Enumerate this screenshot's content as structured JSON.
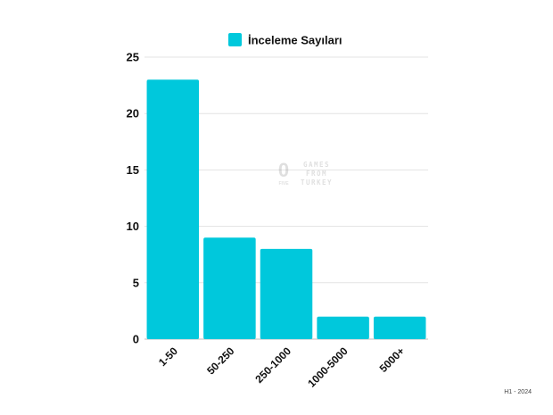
{
  "chart_data": {
    "type": "bar",
    "categories": [
      "1-50",
      "50-250",
      "250-1000",
      "1000-5000",
      "5000+"
    ],
    "series": [
      {
        "name": "İnceleme Sayıları",
        "values": [
          23,
          9,
          8,
          2,
          2
        ],
        "color": "#00c8dc"
      }
    ],
    "ylim": [
      0,
      25
    ],
    "yticks": [
      0,
      5,
      10,
      15,
      20,
      25
    ],
    "grid": true,
    "legend_position": "top-center"
  },
  "watermark": {
    "logo_glyph": "0",
    "logo_caption": "FIVE",
    "lines": [
      "GAMES",
      "FROM",
      "TURKEY"
    ]
  },
  "footer": {
    "text": "H1 - 2024"
  }
}
